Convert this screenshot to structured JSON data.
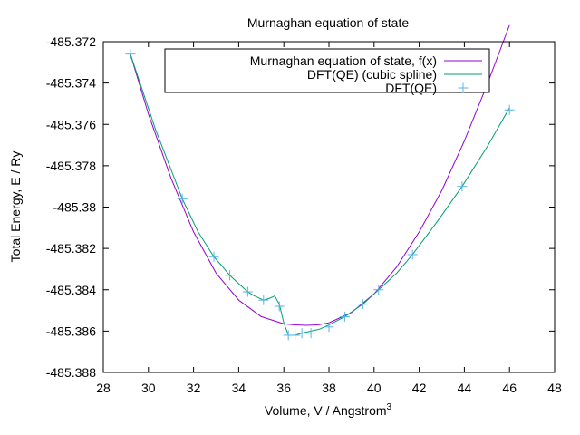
{
  "chart_data": {
    "type": "line",
    "title": "Murnaghan equation of state",
    "xlabel": "Volume, V / Angstrom",
    "xlabel_sup": "3",
    "ylabel": "Total Energy, E / Ry",
    "xlim": [
      28,
      48
    ],
    "ylim": [
      -485.388,
      -485.372
    ],
    "x_ticks": [
      28,
      30,
      32,
      34,
      36,
      38,
      40,
      42,
      44,
      46,
      48
    ],
    "y_ticks": [
      -485.372,
      -485.374,
      -485.376,
      -485.378,
      -485.38,
      -485.382,
      -485.384,
      -485.386,
      -485.388
    ],
    "y_tick_labels": [
      "-485.372",
      "-485.374",
      "-485.376",
      "-485.378",
      "-485.38",
      "-485.382",
      "-485.384",
      "-485.386",
      "-485.388"
    ],
    "grid": false,
    "legend_position": "top-center",
    "series": [
      {
        "name": "Murnaghan equation of state, f(x)",
        "color": "#9400d3",
        "style": "line",
        "x": [
          29.2,
          30.0,
          31.0,
          32.0,
          33.0,
          34.0,
          35.0,
          36.0,
          36.5,
          37.0,
          37.5,
          38.0,
          39.0,
          40.0,
          41.0,
          42.0,
          43.0,
          44.0,
          45.0,
          46.0
        ],
        "y": [
          -485.3726,
          -485.3755,
          -485.3786,
          -485.3812,
          -485.3832,
          -485.3845,
          -485.3853,
          -485.38565,
          -485.3857,
          -485.38572,
          -485.3857,
          -485.3856,
          -485.3851,
          -485.3842,
          -485.3829,
          -485.3812,
          -485.3792,
          -485.3768,
          -485.3741,
          -485.3712
        ]
      },
      {
        "name": "DFT(QE) (cubic spline)",
        "color": "#009e73",
        "style": "line",
        "x": [
          29.2,
          30.3,
          31.5,
          32.2,
          32.9,
          33.3,
          33.6,
          34.0,
          34.4,
          34.7,
          35.1,
          35.4,
          35.6,
          35.8,
          36.0,
          36.2,
          36.5,
          36.8,
          37.2,
          37.6,
          38.0,
          38.7,
          39.5,
          40.2,
          41.0,
          41.7,
          42.8,
          43.9,
          45.0,
          46.0
        ],
        "y": [
          -485.3726,
          -485.3762,
          -485.3796,
          -485.3812,
          -485.3824,
          -485.3829,
          -485.3833,
          -485.3837,
          -485.3841,
          -485.3843,
          -485.3845,
          -485.3844,
          -485.3843,
          -485.3847,
          -485.3856,
          -485.3862,
          -485.3862,
          -485.3861,
          -485.386,
          -485.3859,
          -485.3857,
          -485.3853,
          -485.3847,
          -485.384,
          -485.3832,
          -485.3823,
          -485.3807,
          -485.379,
          -485.3771,
          -485.3752
        ]
      },
      {
        "name": "DFT(QE)",
        "color": "#56b4e9",
        "style": "points",
        "x": [
          29.2,
          31.5,
          32.9,
          33.6,
          34.4,
          35.1,
          35.8,
          36.2,
          36.5,
          36.8,
          37.2,
          38.0,
          38.7,
          39.5,
          40.2,
          41.7,
          43.9,
          46.0
        ],
        "y": [
          -485.3726,
          -485.3796,
          -485.3824,
          -485.3833,
          -485.3841,
          -485.3845,
          -485.3848,
          -485.3862,
          -485.3862,
          -485.3861,
          -485.3861,
          -485.3858,
          -485.3853,
          -485.3847,
          -485.384,
          -485.3823,
          -485.379,
          -485.3753
        ]
      }
    ]
  }
}
